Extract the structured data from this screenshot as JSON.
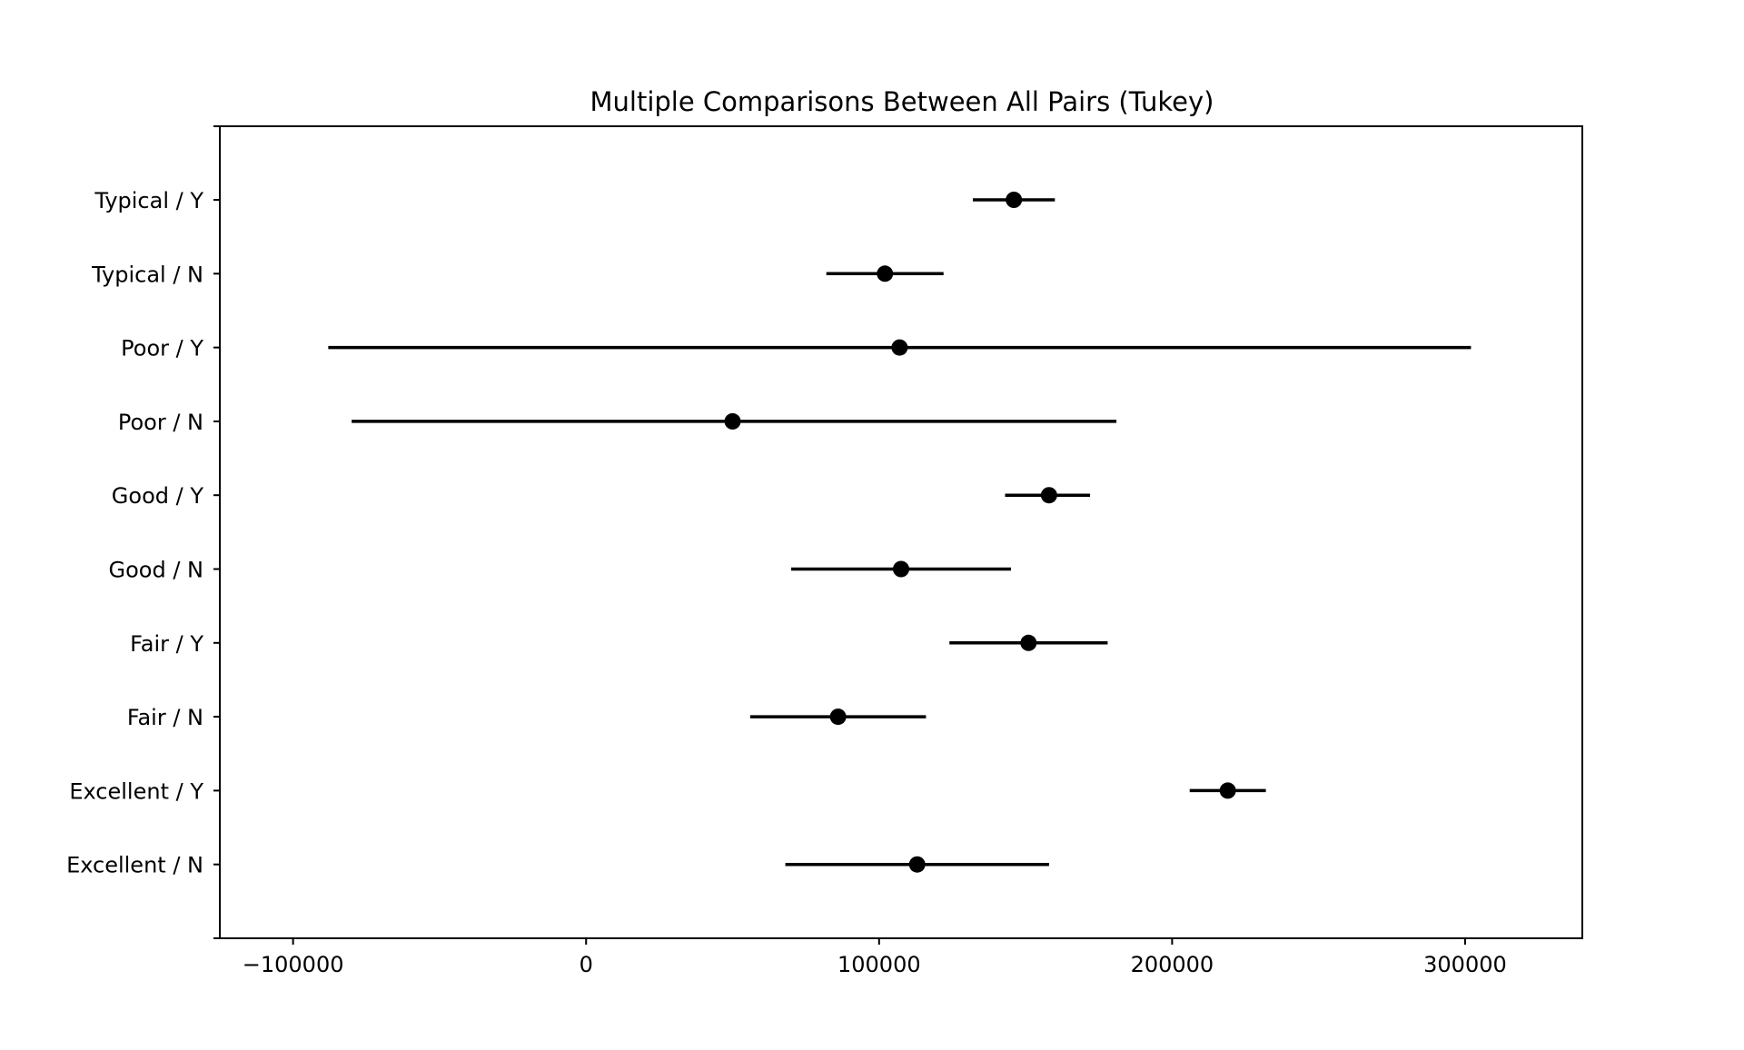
{
  "chart_data": {
    "type": "scatter",
    "title": "Multiple Comparisons Between All Pairs (Tukey)",
    "xlabel": "",
    "ylabel": "",
    "xlim": [
      -125000,
      340000
    ],
    "x_ticks": [
      -100000,
      0,
      100000,
      200000,
      300000
    ],
    "x_tick_labels": [
      "−100000",
      "0",
      "100000",
      "200000",
      "300000"
    ],
    "grid": false,
    "marker_color": "#000000",
    "categories": [
      "Typical / Y",
      "Typical / N",
      "Poor / Y",
      "Poor / N",
      "Good / Y",
      "Good / N",
      "Fair / Y",
      "Fair / N",
      "Excellent / Y",
      "Excellent / N"
    ],
    "points": [
      {
        "label": "Typical / Y",
        "mean": 146000,
        "lower": 132000,
        "upper": 160000
      },
      {
        "label": "Typical / N",
        "mean": 102000,
        "lower": 82000,
        "upper": 122000
      },
      {
        "label": "Poor / Y",
        "mean": 107000,
        "lower": -88000,
        "upper": 302000
      },
      {
        "label": "Poor / N",
        "mean": 50000,
        "lower": -80000,
        "upper": 181000
      },
      {
        "label": "Good / Y",
        "mean": 158000,
        "lower": 143000,
        "upper": 172000
      },
      {
        "label": "Good / N",
        "mean": 107500,
        "lower": 70000,
        "upper": 145000
      },
      {
        "label": "Fair / Y",
        "mean": 151000,
        "lower": 124000,
        "upper": 178000
      },
      {
        "label": "Fair / N",
        "mean": 86000,
        "lower": 56000,
        "upper": 116000
      },
      {
        "label": "Excellent / Y",
        "mean": 219000,
        "lower": 206000,
        "upper": 232000
      },
      {
        "label": "Excellent / N",
        "mean": 113000,
        "lower": 68000,
        "upper": 158000
      }
    ]
  }
}
